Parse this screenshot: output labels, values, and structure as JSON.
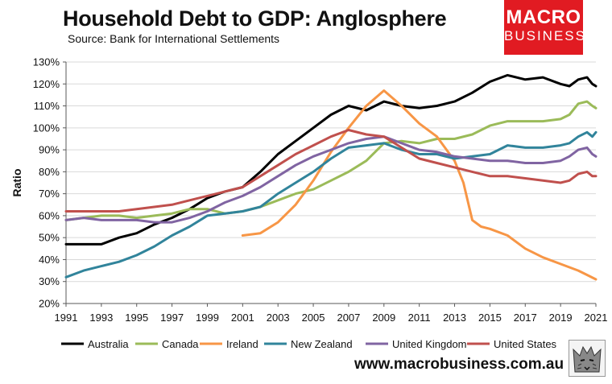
{
  "header": {
    "title": "Household Debt to GDP: Anglosphere",
    "source": "Source: Bank for International Settlements"
  },
  "logo": {
    "line1": "MACRO",
    "line2": "BUSINESS",
    "color": "#e11b22"
  },
  "footer": {
    "url": "www.macrobusiness.com.au"
  },
  "chart_data": {
    "type": "line",
    "title": "Household Debt to GDP: Anglosphere",
    "ylabel": "Ratio",
    "xlabel": "",
    "xlim": [
      1991,
      2021
    ],
    "ylim": [
      20,
      130
    ],
    "xticks": [
      1991,
      1993,
      1995,
      1997,
      1999,
      2001,
      2003,
      2005,
      2007,
      2009,
      2011,
      2013,
      2015,
      2017,
      2019,
      2021
    ],
    "yticks": [
      20,
      30,
      40,
      50,
      60,
      70,
      80,
      90,
      100,
      110,
      120,
      130
    ],
    "ytick_labels": [
      "20%",
      "30%",
      "40%",
      "50%",
      "60%",
      "70%",
      "80%",
      "90%",
      "100%",
      "110%",
      "120%",
      "130%"
    ],
    "grid": "horizontal",
    "legend": "bottom",
    "series": [
      {
        "name": "Australia",
        "color": "#000000",
        "points": [
          [
            1991,
            47
          ],
          [
            1992,
            47
          ],
          [
            1993,
            47
          ],
          [
            1994,
            50
          ],
          [
            1995,
            52
          ],
          [
            1996,
            56
          ],
          [
            1997,
            59
          ],
          [
            1998,
            63
          ],
          [
            1999,
            68
          ],
          [
            2000,
            71
          ],
          [
            2001,
            73
          ],
          [
            2002,
            80
          ],
          [
            2003,
            88
          ],
          [
            2004,
            94
          ],
          [
            2005,
            100
          ],
          [
            2006,
            106
          ],
          [
            2007,
            110
          ],
          [
            2008,
            108
          ],
          [
            2009,
            112
          ],
          [
            2010,
            110
          ],
          [
            2011,
            109
          ],
          [
            2012,
            110
          ],
          [
            2013,
            112
          ],
          [
            2014,
            116
          ],
          [
            2015,
            121
          ],
          [
            2016,
            124
          ],
          [
            2017,
            122
          ],
          [
            2018,
            123
          ],
          [
            2019,
            120
          ],
          [
            2019.5,
            119
          ],
          [
            2020,
            122
          ],
          [
            2020.5,
            123
          ],
          [
            2020.8,
            120
          ],
          [
            2021,
            119
          ]
        ]
      },
      {
        "name": "Canada",
        "color": "#9bbb59",
        "points": [
          [
            1991,
            58
          ],
          [
            1992,
            59
          ],
          [
            1993,
            60
          ],
          [
            1994,
            60
          ],
          [
            1995,
            59
          ],
          [
            1996,
            60
          ],
          [
            1997,
            61
          ],
          [
            1998,
            63
          ],
          [
            1999,
            63
          ],
          [
            2000,
            61
          ],
          [
            2001,
            62
          ],
          [
            2002,
            64
          ],
          [
            2003,
            67
          ],
          [
            2004,
            70
          ],
          [
            2005,
            72
          ],
          [
            2006,
            76
          ],
          [
            2007,
            80
          ],
          [
            2008,
            85
          ],
          [
            2009,
            93
          ],
          [
            2010,
            94
          ],
          [
            2011,
            93
          ],
          [
            2012,
            95
          ],
          [
            2013,
            95
          ],
          [
            2014,
            97
          ],
          [
            2015,
            101
          ],
          [
            2016,
            103
          ],
          [
            2017,
            103
          ],
          [
            2018,
            103
          ],
          [
            2019,
            104
          ],
          [
            2019.5,
            106
          ],
          [
            2020,
            111
          ],
          [
            2020.5,
            112
          ],
          [
            2020.8,
            110
          ],
          [
            2021,
            109
          ]
        ]
      },
      {
        "name": "Ireland",
        "color": "#f79646",
        "points": [
          [
            2001,
            51
          ],
          [
            2002,
            52
          ],
          [
            2003,
            57
          ],
          [
            2004,
            65
          ],
          [
            2005,
            76
          ],
          [
            2006,
            89
          ],
          [
            2007,
            100
          ],
          [
            2008,
            110
          ],
          [
            2009,
            117
          ],
          [
            2010,
            110
          ],
          [
            2011,
            102
          ],
          [
            2012,
            96
          ],
          [
            2013,
            85
          ],
          [
            2013.5,
            75
          ],
          [
            2014,
            58
          ],
          [
            2014.5,
            55
          ],
          [
            2015,
            54
          ],
          [
            2016,
            51
          ],
          [
            2017,
            45
          ],
          [
            2018,
            41
          ],
          [
            2019,
            38
          ],
          [
            2020,
            35
          ],
          [
            2020.5,
            33
          ],
          [
            2021,
            31
          ]
        ]
      },
      {
        "name": "New Zealand",
        "color": "#31849b",
        "points": [
          [
            1991,
            32
          ],
          [
            1992,
            35
          ],
          [
            1993,
            37
          ],
          [
            1994,
            39
          ],
          [
            1995,
            42
          ],
          [
            1996,
            46
          ],
          [
            1997,
            51
          ],
          [
            1998,
            55
          ],
          [
            1999,
            60
          ],
          [
            2000,
            61
          ],
          [
            2001,
            62
          ],
          [
            2002,
            64
          ],
          [
            2003,
            70
          ],
          [
            2004,
            75
          ],
          [
            2005,
            80
          ],
          [
            2006,
            86
          ],
          [
            2007,
            91
          ],
          [
            2008,
            92
          ],
          [
            2009,
            93
          ],
          [
            2010,
            90
          ],
          [
            2011,
            88
          ],
          [
            2012,
            88
          ],
          [
            2013,
            86
          ],
          [
            2014,
            87
          ],
          [
            2015,
            88
          ],
          [
            2016,
            92
          ],
          [
            2017,
            91
          ],
          [
            2018,
            91
          ],
          [
            2019,
            92
          ],
          [
            2019.5,
            93
          ],
          [
            2020,
            96
          ],
          [
            2020.5,
            98
          ],
          [
            2020.8,
            96
          ],
          [
            2021,
            98
          ]
        ]
      },
      {
        "name": "United Kingdom",
        "color": "#8064a2",
        "points": [
          [
            1991,
            58
          ],
          [
            1992,
            59
          ],
          [
            1993,
            58
          ],
          [
            1994,
            58
          ],
          [
            1995,
            58
          ],
          [
            1996,
            57
          ],
          [
            1997,
            57
          ],
          [
            1998,
            59
          ],
          [
            1999,
            62
          ],
          [
            2000,
            66
          ],
          [
            2001,
            69
          ],
          [
            2002,
            73
          ],
          [
            2003,
            78
          ],
          [
            2004,
            83
          ],
          [
            2005,
            87
          ],
          [
            2006,
            90
          ],
          [
            2007,
            93
          ],
          [
            2008,
            95
          ],
          [
            2009,
            96
          ],
          [
            2010,
            93
          ],
          [
            2011,
            90
          ],
          [
            2012,
            89
          ],
          [
            2013,
            87
          ],
          [
            2014,
            86
          ],
          [
            2015,
            85
          ],
          [
            2016,
            85
          ],
          [
            2017,
            84
          ],
          [
            2018,
            84
          ],
          [
            2019,
            85
          ],
          [
            2019.5,
            87
          ],
          [
            2020,
            90
          ],
          [
            2020.5,
            91
          ],
          [
            2020.8,
            88
          ],
          [
            2021,
            87
          ]
        ]
      },
      {
        "name": "United States",
        "color": "#c0504d",
        "points": [
          [
            1991,
            62
          ],
          [
            1992,
            62
          ],
          [
            1993,
            62
          ],
          [
            1994,
            62
          ],
          [
            1995,
            63
          ],
          [
            1996,
            64
          ],
          [
            1997,
            65
          ],
          [
            1998,
            67
          ],
          [
            1999,
            69
          ],
          [
            2000,
            71
          ],
          [
            2001,
            73
          ],
          [
            2002,
            78
          ],
          [
            2003,
            83
          ],
          [
            2004,
            88
          ],
          [
            2005,
            92
          ],
          [
            2006,
            96
          ],
          [
            2007,
            99
          ],
          [
            2008,
            97
          ],
          [
            2009,
            96
          ],
          [
            2010,
            91
          ],
          [
            2011,
            86
          ],
          [
            2012,
            84
          ],
          [
            2013,
            82
          ],
          [
            2014,
            80
          ],
          [
            2015,
            78
          ],
          [
            2016,
            78
          ],
          [
            2017,
            77
          ],
          [
            2018,
            76
          ],
          [
            2019,
            75
          ],
          [
            2019.5,
            76
          ],
          [
            2020,
            79
          ],
          [
            2020.5,
            80
          ],
          [
            2020.8,
            78
          ],
          [
            2021,
            78
          ]
        ]
      }
    ]
  }
}
